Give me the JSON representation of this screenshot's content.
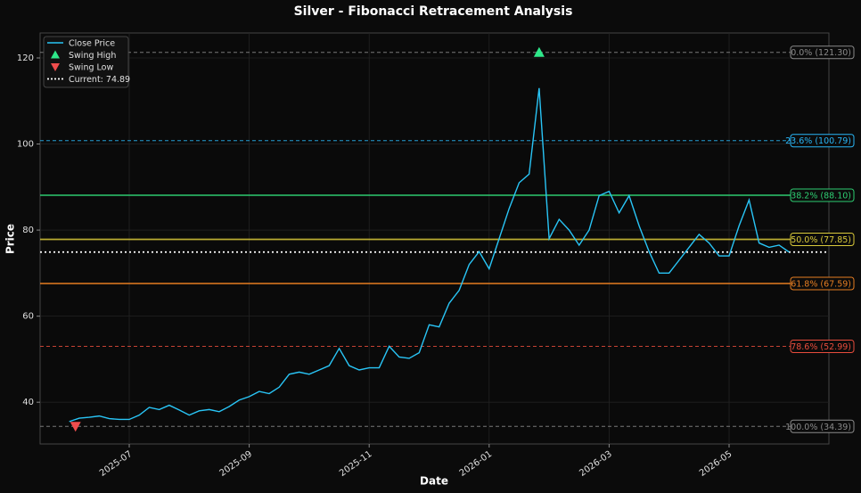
{
  "chart_data": {
    "type": "line",
    "title": "Silver - Fibonacci Retracement Analysis",
    "x_label": "Date",
    "y_label": "Price",
    "x": [
      "2025-06",
      "2025-06",
      "2025-06",
      "2025-06",
      "2025-06",
      "2025-06",
      "2025-07",
      "2025-07",
      "2025-07",
      "2025-07",
      "2025-07",
      "2025-07",
      "2025-08",
      "2025-08",
      "2025-08",
      "2025-08",
      "2025-08",
      "2025-08",
      "2025-09",
      "2025-09",
      "2025-09",
      "2025-09",
      "2025-09",
      "2025-09",
      "2025-10",
      "2025-10",
      "2025-10",
      "2025-10",
      "2025-10",
      "2025-10",
      "2025-11",
      "2025-11",
      "2025-11",
      "2025-11",
      "2025-11",
      "2025-11",
      "2025-12",
      "2025-12",
      "2025-12",
      "2025-12",
      "2025-12",
      "2025-12",
      "2026-01",
      "2026-01",
      "2026-01",
      "2026-01",
      "2026-01",
      "2026-01",
      "2026-02",
      "2026-02",
      "2026-02",
      "2026-02",
      "2026-02",
      "2026-02",
      "2026-03",
      "2026-03",
      "2026-03",
      "2026-03",
      "2026-03",
      "2026-03",
      "2026-04",
      "2026-04",
      "2026-04",
      "2026-04",
      "2026-04",
      "2026-04",
      "2026-05",
      "2026-05",
      "2026-05",
      "2026-05",
      "2026-05",
      "2026-05",
      "2026-06"
    ],
    "series": [
      {
        "name": "Close Price",
        "color": "#29c5f6",
        "values": [
          35.5,
          36.3,
          36.5,
          36.8,
          36.2,
          36.0,
          36.0,
          37.0,
          38.8,
          38.3,
          39.3,
          38.2,
          37.0,
          38.0,
          38.3,
          37.8,
          39.0,
          40.5,
          41.3,
          42.5,
          42.0,
          43.5,
          46.5,
          47.0,
          46.5,
          47.5,
          48.5,
          52.5,
          48.5,
          47.5,
          48.0,
          48.0,
          53.0,
          50.5,
          50.2,
          51.5,
          58.0,
          57.5,
          63.0,
          66.0,
          72.0,
          75.0,
          71.0,
          78.0,
          85.0,
          91.0,
          93.0,
          113.0,
          78.0,
          82.5,
          80.0,
          76.5,
          80.0,
          88.0,
          89.0,
          84.0,
          88.0,
          81.0,
          75.0,
          70.0,
          70.0,
          73.0,
          76.0,
          79.0,
          77.0,
          74.0,
          74.0,
          81.0,
          87.0,
          77.0,
          76.0,
          76.5,
          74.89
        ]
      }
    ],
    "swing_high": {
      "name": "Swing High",
      "value": 121.3,
      "color": "#2ee88a"
    },
    "swing_low": {
      "name": "Swing Low",
      "value": 34.39,
      "color": "#ef4d4d"
    },
    "current": {
      "name": "Current: 74.89",
      "value": 74.89,
      "color": "#ffffff"
    },
    "levels": [
      {
        "label": "0.0% (121.30)",
        "value": 121.3,
        "color": "#8a8a8a",
        "dashed": true
      },
      {
        "label": "23.6% (100.79)",
        "value": 100.79,
        "color": "#29b6f6",
        "dashed": true
      },
      {
        "label": "38.2% (88.10)",
        "value": 88.1,
        "color": "#2ecc71",
        "dashed": false
      },
      {
        "label": "50.0% (77.85)",
        "value": 77.85,
        "color": "#d9c93a",
        "dashed": false
      },
      {
        "label": "61.8% (67.59)",
        "value": 67.59,
        "color": "#e67e22",
        "dashed": false
      },
      {
        "label": "78.6% (52.99)",
        "value": 52.99,
        "color": "#e74c3c",
        "dashed": true
      },
      {
        "label": "100.0% (34.39)",
        "value": 34.39,
        "color": "#8a8a8a",
        "dashed": true
      }
    ],
    "ylim": [
      30.3,
      125.8
    ],
    "yticks": [
      40,
      60,
      80,
      100,
      120
    ],
    "xticks": [
      "2025-07",
      "2025-09",
      "2025-11",
      "2026-01",
      "2026-03",
      "2026-05"
    ],
    "grid": true
  }
}
